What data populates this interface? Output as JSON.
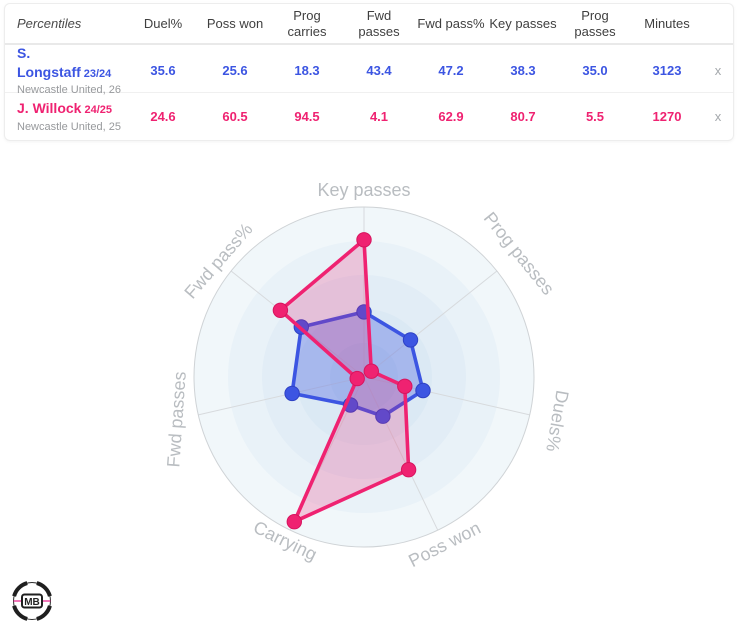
{
  "table": {
    "corner_label": "Percentiles",
    "columns": [
      "Duel%",
      "Poss won",
      "Prog\ncarries",
      "Fwd\npasses",
      "Fwd pass%",
      "Key passes",
      "Prog\npasses",
      "Minutes"
    ],
    "rows": [
      {
        "name": "S. Longstaff",
        "season": "23/24",
        "club": "Newcastle United, 26",
        "color": "#3c55e2",
        "values": [
          "35.6",
          "25.6",
          "18.3",
          "43.4",
          "47.2",
          "38.3",
          "35.0",
          "3123"
        ],
        "remove_label": "x"
      },
      {
        "name": "J. Willock",
        "season": "24/25",
        "club": "Newcastle United, 25",
        "color": "#ef2271",
        "values": [
          "24.6",
          "60.5",
          "94.5",
          "4.1",
          "62.9",
          "80.7",
          "5.5",
          "1270"
        ],
        "remove_label": "x"
      }
    ]
  },
  "chart_data": {
    "type": "radar",
    "title": "",
    "axes": [
      "Key passes",
      "Prog passes",
      "Duels%",
      "Poss won",
      "Carrying",
      "Fwd passes",
      "Fwd pass%"
    ],
    "rmax": 100,
    "grid": "concentric-rings",
    "legend_position": "none",
    "series": [
      {
        "name": "S. Longstaff 23/24",
        "color": "#3c55e2",
        "marker_stroke": "#2e41c4",
        "fill_opacity": 0.33,
        "values": [
          38.3,
          35.0,
          35.6,
          25.6,
          18.3,
          43.4,
          47.2
        ]
      },
      {
        "name": "J. Willock 24/25",
        "color": "#ef2271",
        "marker_stroke": "#d6145e",
        "fill_opacity": 0.22,
        "values": [
          80.7,
          5.5,
          24.6,
          60.5,
          94.5,
          4.1,
          62.9
        ]
      }
    ],
    "layout": {
      "center": [
        364,
        377
      ],
      "radius": 170,
      "ring_colors": [
        "#f1f7fa",
        "#e9f2f8",
        "#e2edf6",
        "#dbe9f4",
        "#d4e5f1"
      ],
      "spoke_color": "#d7dadd",
      "outer_stroke": "#cfd3d6",
      "label_color": "#b9bdc1",
      "label_rotations": [
        0,
        51,
        100,
        -27,
        26,
        -86,
        -49
      ],
      "label_offsets": [
        16,
        27,
        27,
        17,
        13,
        21,
        15
      ],
      "line_width": 3.6,
      "marker_radius": 7.2
    }
  },
  "logo": {
    "text": "MB"
  }
}
